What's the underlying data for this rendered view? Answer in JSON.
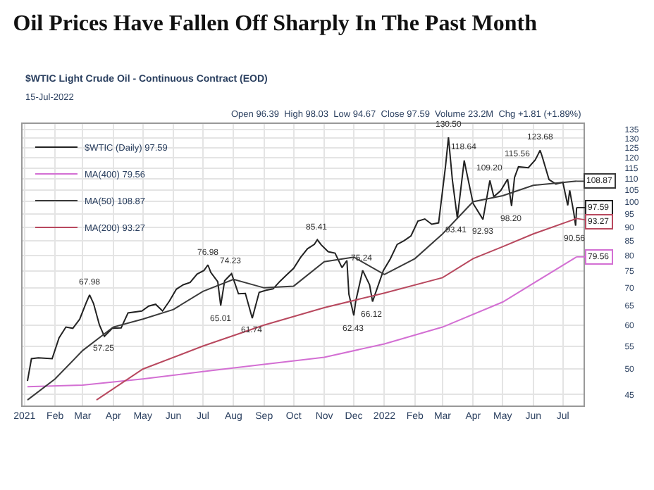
{
  "chart_data": {
    "type": "line",
    "title": "Oil Prices Have Fallen Off Sharply In The Past Month",
    "subtitle": "$WTIC Light Crude Oil - Continuous Contract (EOD)",
    "annotations": [
      "15-Jul-2022",
      "Open 96.39  High 98.03  Low 94.67  Close 97.59  Volume 23.2M  Chg +1.81 (+1.89%)",
      {
        "text": "67.98",
        "x": "2021-03-08",
        "y": 67.98
      },
      {
        "text": "57.25",
        "x": "2021-03-23",
        "y": 57.25
      },
      {
        "text": "76.98",
        "x": "2021-07-06",
        "y": 76.98
      },
      {
        "text": "65.01",
        "x": "2021-07-19",
        "y": 65.01
      },
      {
        "text": "74.23",
        "x": "2021-07-30",
        "y": 74.23
      },
      {
        "text": "61.74",
        "x": "2021-08-20",
        "y": 61.74
      },
      {
        "text": "85.41",
        "x": "2021-10-25",
        "y": 85.41
      },
      {
        "text": "62.43",
        "x": "2021-12-01",
        "y": 62.43
      },
      {
        "text": "75.24",
        "x": "2021-12-10",
        "y": 75.24
      },
      {
        "text": "66.12",
        "x": "2021-12-20",
        "y": 66.12
      },
      {
        "text": "130.50",
        "x": "2022-03-07",
        "y": 130.5
      },
      {
        "text": "93.41",
        "x": "2022-03-16",
        "y": 93.41
      },
      {
        "text": "118.64",
        "x": "2022-03-23",
        "y": 118.64
      },
      {
        "text": "92.93",
        "x": "2022-04-11",
        "y": 92.93
      },
      {
        "text": "109.20",
        "x": "2022-04-18",
        "y": 109.2
      },
      {
        "text": "98.20",
        "x": "2022-05-10",
        "y": 98.2
      },
      {
        "text": "115.56",
        "x": "2022-05-17",
        "y": 115.56
      },
      {
        "text": "123.68",
        "x": "2022-06-08",
        "y": 123.68
      },
      {
        "text": "90.56",
        "x": "2022-07-14",
        "y": 90.56
      },
      {
        "text": "108.87",
        "x": "2022-07-15",
        "y": 108.87
      },
      {
        "text": "97.59",
        "x": "2022-07-15",
        "y": 97.59
      },
      {
        "text": "93.27",
        "x": "2022-07-15",
        "y": 93.27
      },
      {
        "text": "79.56",
        "x": "2022-07-15",
        "y": 79.56
      }
    ],
    "log": "y",
    "grid": true,
    "legend": "top left",
    "marker": "none",
    "line_style": "solid",
    "tick_labels": "xy",
    "xlim": [
      "2020-12-30",
      "2022-07-22"
    ],
    "ylim": [
      43,
      138
    ],
    "xticks": [
      {
        "value": "2021-01-01",
        "label": "2021"
      },
      {
        "value": "2021-02-01",
        "label": "Feb"
      },
      {
        "value": "2021-03-01",
        "label": "Mar"
      },
      {
        "value": "2021-04-01",
        "label": "Apr"
      },
      {
        "value": "2021-05-01",
        "label": "May"
      },
      {
        "value": "2021-06-01",
        "label": "Jun"
      },
      {
        "value": "2021-07-01",
        "label": "Jul"
      },
      {
        "value": "2021-08-01",
        "label": "Aug"
      },
      {
        "value": "2021-09-01",
        "label": "Sep"
      },
      {
        "value": "2021-10-01",
        "label": "Oct"
      },
      {
        "value": "2021-11-01",
        "label": "Nov"
      },
      {
        "value": "2021-12-01",
        "label": "Dec"
      },
      {
        "value": "2022-01-01",
        "label": "2022"
      },
      {
        "value": "2022-02-01",
        "label": "Feb"
      },
      {
        "value": "2022-03-01",
        "label": "Mar"
      },
      {
        "value": "2022-04-01",
        "label": "Apr"
      },
      {
        "value": "2022-05-01",
        "label": "May"
      },
      {
        "value": "2022-06-01",
        "label": "Jun"
      },
      {
        "value": "2022-07-01",
        "label": "Jul"
      }
    ],
    "yticks": [
      45,
      50,
      55,
      60,
      65,
      70,
      75,
      80,
      85,
      90,
      95,
      100,
      105,
      110,
      115,
      120,
      125,
      130,
      135
    ],
    "series": [
      {
        "name": "$WTIC (Daily) 97.59",
        "color": "#222222",
        "x": [
          "2021-01-04",
          "2021-01-08",
          "2021-01-15",
          "2021-01-29",
          "2021-02-05",
          "2021-02-12",
          "2021-02-19",
          "2021-02-26",
          "2021-03-05",
          "2021-03-08",
          "2021-03-12",
          "2021-03-18",
          "2021-03-23",
          "2021-03-31",
          "2021-04-09",
          "2021-04-16",
          "2021-04-30",
          "2021-05-07",
          "2021-05-14",
          "2021-05-21",
          "2021-05-28",
          "2021-06-04",
          "2021-06-11",
          "2021-06-18",
          "2021-06-25",
          "2021-07-02",
          "2021-07-06",
          "2021-07-09",
          "2021-07-16",
          "2021-07-19",
          "2021-07-23",
          "2021-07-30",
          "2021-08-06",
          "2021-08-13",
          "2021-08-20",
          "2021-08-27",
          "2021-09-03",
          "2021-09-10",
          "2021-09-17",
          "2021-09-24",
          "2021-10-01",
          "2021-10-08",
          "2021-10-15",
          "2021-10-22",
          "2021-10-25",
          "2021-10-29",
          "2021-11-05",
          "2021-11-12",
          "2021-11-19",
          "2021-11-24",
          "2021-11-26",
          "2021-12-01",
          "2021-12-03",
          "2021-12-10",
          "2021-12-17",
          "2021-12-20",
          "2021-12-31",
          "2022-01-07",
          "2022-01-14",
          "2022-01-21",
          "2022-01-28",
          "2022-02-04",
          "2022-02-11",
          "2022-02-18",
          "2022-02-25",
          "2022-03-04",
          "2022-03-07",
          "2022-03-11",
          "2022-03-16",
          "2022-03-23",
          "2022-03-25",
          "2022-04-01",
          "2022-04-11",
          "2022-04-18",
          "2022-04-22",
          "2022-04-29",
          "2022-05-06",
          "2022-05-10",
          "2022-05-13",
          "2022-05-17",
          "2022-05-27",
          "2022-06-03",
          "2022-06-08",
          "2022-06-10",
          "2022-06-17",
          "2022-06-24",
          "2022-07-01",
          "2022-07-06",
          "2022-07-08",
          "2022-07-12",
          "2022-07-14",
          "2022-07-15"
        ],
        "values": [
          47.6,
          52.2,
          52.4,
          52.2,
          56.9,
          59.5,
          59.2,
          61.5,
          66.1,
          67.98,
          65.6,
          60.0,
          57.25,
          59.2,
          59.3,
          63.1,
          63.6,
          64.9,
          65.4,
          63.6,
          66.3,
          69.6,
          70.9,
          71.6,
          74.1,
          75.2,
          76.98,
          74.6,
          71.8,
          65.01,
          72.1,
          74.23,
          68.3,
          68.4,
          61.74,
          68.7,
          69.3,
          69.7,
          71.9,
          73.9,
          75.9,
          79.4,
          82.3,
          83.8,
          85.41,
          83.6,
          81.3,
          80.8,
          76.1,
          78.4,
          68.2,
          62.43,
          66.3,
          75.24,
          70.9,
          66.12,
          75.2,
          78.9,
          83.8,
          85.1,
          86.8,
          92.3,
          93.1,
          91.1,
          91.6,
          115.7,
          130.5,
          109.3,
          93.41,
          118.64,
          113.9,
          99.3,
          92.93,
          109.2,
          102.1,
          104.7,
          109.8,
          98.2,
          110.5,
          115.56,
          115.1,
          118.9,
          123.68,
          120.7,
          109.6,
          107.6,
          108.4,
          98.5,
          104.8,
          95.8,
          90.56,
          97.59
        ]
      },
      {
        "name": "MA(400) 79.56",
        "color": "#d36fd3",
        "x": [
          "2021-01-04",
          "2021-03-01",
          "2021-05-01",
          "2021-07-01",
          "2021-09-01",
          "2021-11-01",
          "2022-01-01",
          "2022-03-01",
          "2022-05-01",
          "2022-07-15"
        ],
        "values": [
          46.5,
          46.8,
          48,
          49.5,
          51,
          52.5,
          55.5,
          59.5,
          66,
          79.56
        ]
      },
      {
        "name": "MA(50) 108.87",
        "color": "#3a3a3a",
        "x": [
          "2021-01-04",
          "2021-02-01",
          "2021-03-01",
          "2021-04-01",
          "2021-05-01",
          "2021-06-01",
          "2021-07-01",
          "2021-08-01",
          "2021-09-01",
          "2021-10-01",
          "2021-11-01",
          "2021-12-01",
          "2022-01-01",
          "2022-02-01",
          "2022-03-01",
          "2022-04-01",
          "2022-05-01",
          "2022-06-01",
          "2022-07-15"
        ],
        "values": [
          44,
          48,
          54,
          59.5,
          61.5,
          64,
          69,
          72.5,
          70,
          70.5,
          78,
          79.5,
          74,
          79,
          87.5,
          100,
          102.5,
          107,
          108.87
        ]
      },
      {
        "name": "MA(200) 93.27",
        "color": "#b8485e",
        "x": [
          "2021-03-15",
          "2021-05-01",
          "2021-07-01",
          "2021-09-01",
          "2021-11-01",
          "2022-01-01",
          "2022-03-01",
          "2022-04-01",
          "2022-05-01",
          "2022-06-01",
          "2022-07-15"
        ],
        "values": [
          44,
          50,
          55,
          60,
          64.5,
          68.5,
          73,
          79,
          83,
          87.5,
          93.27
        ]
      }
    ]
  }
}
